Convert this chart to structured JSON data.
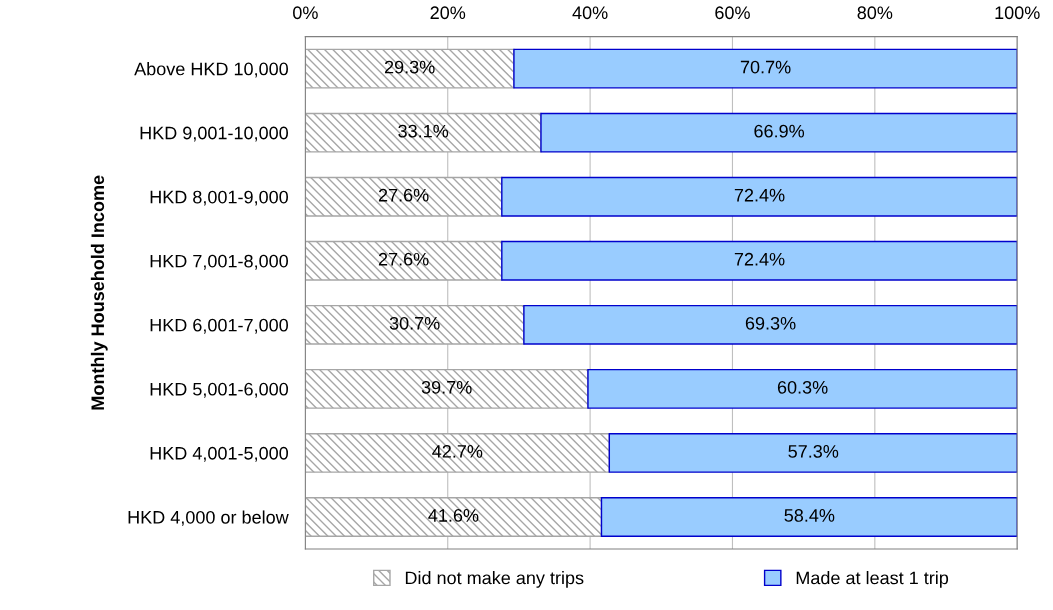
{
  "chart_data": {
    "type": "bar",
    "orientation": "horizontal",
    "stacked": true,
    "ylabel": "Monthly Household Income",
    "categories": [
      "Above HKD 10,000",
      "HKD 9,001-10,000",
      "HKD 8,001-9,000",
      "HKD 7,001-8,000",
      "HKD 6,001-7,000",
      "HKD 5,001-6,000",
      "HKD 4,001-5,000",
      "HKD 4,000 or below"
    ],
    "series": [
      {
        "name": "Did not make any trips",
        "color": "#a6a6a6",
        "values": [
          29.3,
          33.1,
          27.6,
          27.6,
          30.7,
          39.7,
          42.7,
          41.6
        ],
        "value_labels": [
          "29.3%",
          "33.1%",
          "27.6%",
          "27.6%",
          "30.7%",
          "39.7%",
          "42.7%",
          "41.6%"
        ]
      },
      {
        "name": "Made at least 1 trip",
        "color": "#99ccff",
        "values": [
          70.7,
          66.9,
          72.4,
          72.4,
          69.3,
          60.3,
          57.3,
          58.4
        ],
        "value_labels": [
          "70.7%",
          "66.9%",
          "72.4%",
          "72.4%",
          "69.3%",
          "60.3%",
          "57.3%",
          "58.4%"
        ]
      }
    ],
    "xlim": [
      0,
      100
    ],
    "xticks": [
      {
        "value": 0,
        "label": "0%"
      },
      {
        "value": 20,
        "label": "20%"
      },
      {
        "value": 40,
        "label": "40%"
      },
      {
        "value": 60,
        "label": "60%"
      },
      {
        "value": 80,
        "label": "80%"
      },
      {
        "value": 100,
        "label": "100%"
      }
    ],
    "grid": "x",
    "legend": "bottom"
  }
}
